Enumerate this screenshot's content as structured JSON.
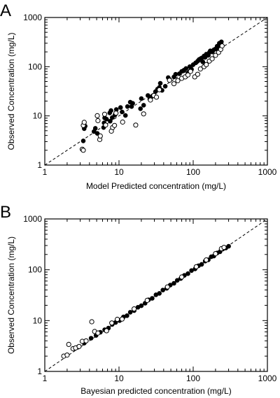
{
  "chart_data": [
    {
      "type": "scatter",
      "panel_label": "A",
      "xlabel": "Model Predicted concentration (mg/L)",
      "ylabel": "Observed Concentration (mg/L)",
      "xscale": "log",
      "yscale": "log",
      "xlim": [
        1,
        1000
      ],
      "ylim": [
        1,
        1000
      ],
      "xticks": [
        "1",
        "10",
        "100",
        "1000"
      ],
      "yticks": [
        "1",
        "10",
        "100",
        "1000"
      ],
      "grid": false,
      "legend": "none",
      "identity_line": {
        "style": "dashed",
        "from": [
          1,
          1
        ],
        "to": [
          1000,
          1000
        ]
      },
      "series": [
        {
          "marker": "filled-circle",
          "points": [
            [
              3.3,
              3.1
            ],
            [
              3.4,
              5.5
            ],
            [
              3.5,
              6.2
            ],
            [
              4.6,
              4.8
            ],
            [
              4.8,
              5.6
            ],
            [
              5.1,
              4.4
            ],
            [
              6.2,
              5.8
            ],
            [
              6.3,
              7.2
            ],
            [
              6.4,
              9.1
            ],
            [
              6.8,
              8.6
            ],
            [
              7.5,
              11.5
            ],
            [
              7.8,
              12.8
            ],
            [
              7.6,
              7.8
            ],
            [
              8.1,
              9.2
            ],
            [
              8.8,
              10.4
            ],
            [
              9.2,
              13.5
            ],
            [
              10.5,
              14.8
            ],
            [
              11,
              12
            ],
            [
              12.2,
              10.2
            ],
            [
              13,
              15.5
            ],
            [
              14.2,
              19
            ],
            [
              15.3,
              18
            ],
            [
              14.8,
              15.5
            ],
            [
              19.5,
              14
            ],
            [
              20,
              22.5
            ],
            [
              21.5,
              16.5
            ],
            [
              24.5,
              26
            ],
            [
              26,
              22
            ],
            [
              28,
              25
            ],
            [
              31,
              31
            ],
            [
              33,
              35
            ],
            [
              35,
              38
            ],
            [
              36,
              46
            ],
            [
              38,
              33
            ],
            [
              42,
              40
            ],
            [
              46,
              60
            ],
            [
              48,
              55
            ],
            [
              55,
              62
            ],
            [
              58,
              70
            ],
            [
              65,
              72
            ],
            [
              70,
              80
            ],
            [
              75,
              85
            ],
            [
              80,
              92
            ],
            [
              85,
              75
            ],
            [
              90,
              100
            ],
            [
              95,
              88
            ],
            [
              100,
              110
            ],
            [
              108,
              120
            ],
            [
              115,
              130
            ],
            [
              120,
              140
            ],
            [
              125,
              145
            ],
            [
              130,
              150
            ],
            [
              135,
              125
            ],
            [
              140,
              165
            ],
            [
              145,
              155
            ],
            [
              150,
              180
            ],
            [
              160,
              170
            ],
            [
              165,
              195
            ],
            [
              170,
              210
            ],
            [
              180,
              200
            ],
            [
              190,
              220
            ],
            [
              200,
              230
            ],
            [
              210,
              260
            ],
            [
              215,
              245
            ],
            [
              225,
              300
            ],
            [
              230,
              270
            ],
            [
              240,
              320
            ]
          ]
        },
        {
          "marker": "open-circle",
          "points": [
            [
              3.2,
              2.1
            ],
            [
              3.3,
              2.0
            ],
            [
              3.3,
              6.4
            ],
            [
              3.4,
              7.4
            ],
            [
              5.1,
              10.1
            ],
            [
              5.2,
              8.0
            ],
            [
              5.5,
              3.3
            ],
            [
              5.6,
              3.9
            ],
            [
              6.4,
              10.8
            ],
            [
              6.6,
              6.5
            ],
            [
              7.9,
              4.9
            ],
            [
              8.2,
              5.8
            ],
            [
              8.7,
              6.4
            ],
            [
              9.1,
              11.4
            ],
            [
              11.2,
              7.5
            ],
            [
              16.8,
              6.5
            ],
            [
              21.5,
              11.0
            ],
            [
              26.5,
              21.0
            ],
            [
              29.5,
              26.0
            ],
            [
              32,
              24
            ],
            [
              35,
              34
            ],
            [
              48,
              53
            ],
            [
              55,
              45
            ],
            [
              62,
              52
            ],
            [
              70,
              58
            ],
            [
              78,
              62
            ],
            [
              85,
              68
            ],
            [
              92,
              80
            ],
            [
              105,
              62
            ],
            [
              115,
              70
            ],
            [
              125,
              90
            ],
            [
              140,
              100
            ],
            [
              150,
              110
            ],
            [
              165,
              130
            ],
            [
              180,
              145
            ],
            [
              200,
              170
            ],
            [
              220,
              195
            ],
            [
              235,
              225
            ],
            [
              245,
              265
            ]
          ]
        }
      ]
    },
    {
      "type": "scatter",
      "panel_label": "B",
      "xlabel": "Bayesian predicted concentration (mg/L)",
      "ylabel": "Observed Concentration (mg/L)",
      "xscale": "log",
      "yscale": "log",
      "xlim": [
        1,
        1000
      ],
      "ylim": [
        1,
        1000
      ],
      "xticks": [
        "1",
        "10",
        "100",
        "1000"
      ],
      "yticks": [
        "1",
        "10",
        "100",
        "1000"
      ],
      "grid": false,
      "legend": "none",
      "identity_line": {
        "style": "dashed",
        "from": [
          1,
          1
        ],
        "to": [
          1000,
          1000
        ]
      },
      "series": [
        {
          "marker": "filled-circle",
          "points": [
            [
              2.8,
              3.0
            ],
            [
              3.4,
              3.6
            ],
            [
              4.2,
              4.5
            ],
            [
              4.9,
              5.1
            ],
            [
              5.6,
              5.9
            ],
            [
              6.4,
              6.6
            ],
            [
              7.2,
              7.1
            ],
            [
              8.1,
              8.4
            ],
            [
              9.0,
              9.2
            ],
            [
              10.2,
              10.0
            ],
            [
              11.5,
              11.8
            ],
            [
              12.8,
              12.5
            ],
            [
              14.2,
              14.6
            ],
            [
              16.0,
              15.7
            ],
            [
              18.0,
              18.3
            ],
            [
              20.0,
              19.6
            ],
            [
              22.5,
              22.0
            ],
            [
              25.0,
              25.6
            ],
            [
              28.0,
              27.4
            ],
            [
              31.5,
              32.2
            ],
            [
              35.0,
              34.3
            ],
            [
              39.0,
              39.8
            ],
            [
              44.0,
              43.2
            ],
            [
              49.0,
              49.9
            ],
            [
              55.0,
              54.2
            ],
            [
              61.0,
              62.0
            ],
            [
              68.0,
              67.3
            ],
            [
              76.0,
              77.5
            ],
            [
              85.0,
              84.0
            ],
            [
              95.0,
              96.5
            ],
            [
              106,
              104
            ],
            [
              118,
              120
            ],
            [
              130,
              128
            ],
            [
              145,
              148
            ],
            [
              160,
              157
            ],
            [
              175,
              180
            ],
            [
              190,
              186
            ],
            [
              210,
              214
            ],
            [
              230,
              226
            ],
            [
              250,
              255
            ],
            [
              275,
              268
            ],
            [
              300,
              290
            ]
          ]
        },
        {
          "marker": "open-circle",
          "points": [
            [
              1.8,
              2.0
            ],
            [
              2.0,
              2.1
            ],
            [
              2.1,
              3.4
            ],
            [
              2.4,
              2.8
            ],
            [
              2.6,
              2.9
            ],
            [
              2.9,
              3.1
            ],
            [
              3.2,
              3.9
            ],
            [
              3.6,
              4.0
            ],
            [
              4.3,
              9.5
            ],
            [
              4.7,
              6.1
            ],
            [
              5.2,
              5.7
            ],
            [
              6.8,
              6.3
            ],
            [
              8.0,
              9.0
            ],
            [
              9.5,
              10.6
            ],
            [
              11.0,
              10.7
            ],
            [
              16.0,
              17.0
            ],
            [
              24.0,
              25.0
            ],
            [
              45.0,
              46.0
            ],
            [
              70.0,
              72.0
            ],
            [
              110,
              115
            ],
            [
              150,
              156
            ],
            [
              200,
              208
            ],
            [
              240,
              260
            ],
            [
              260,
              275
            ]
          ]
        }
      ]
    }
  ]
}
